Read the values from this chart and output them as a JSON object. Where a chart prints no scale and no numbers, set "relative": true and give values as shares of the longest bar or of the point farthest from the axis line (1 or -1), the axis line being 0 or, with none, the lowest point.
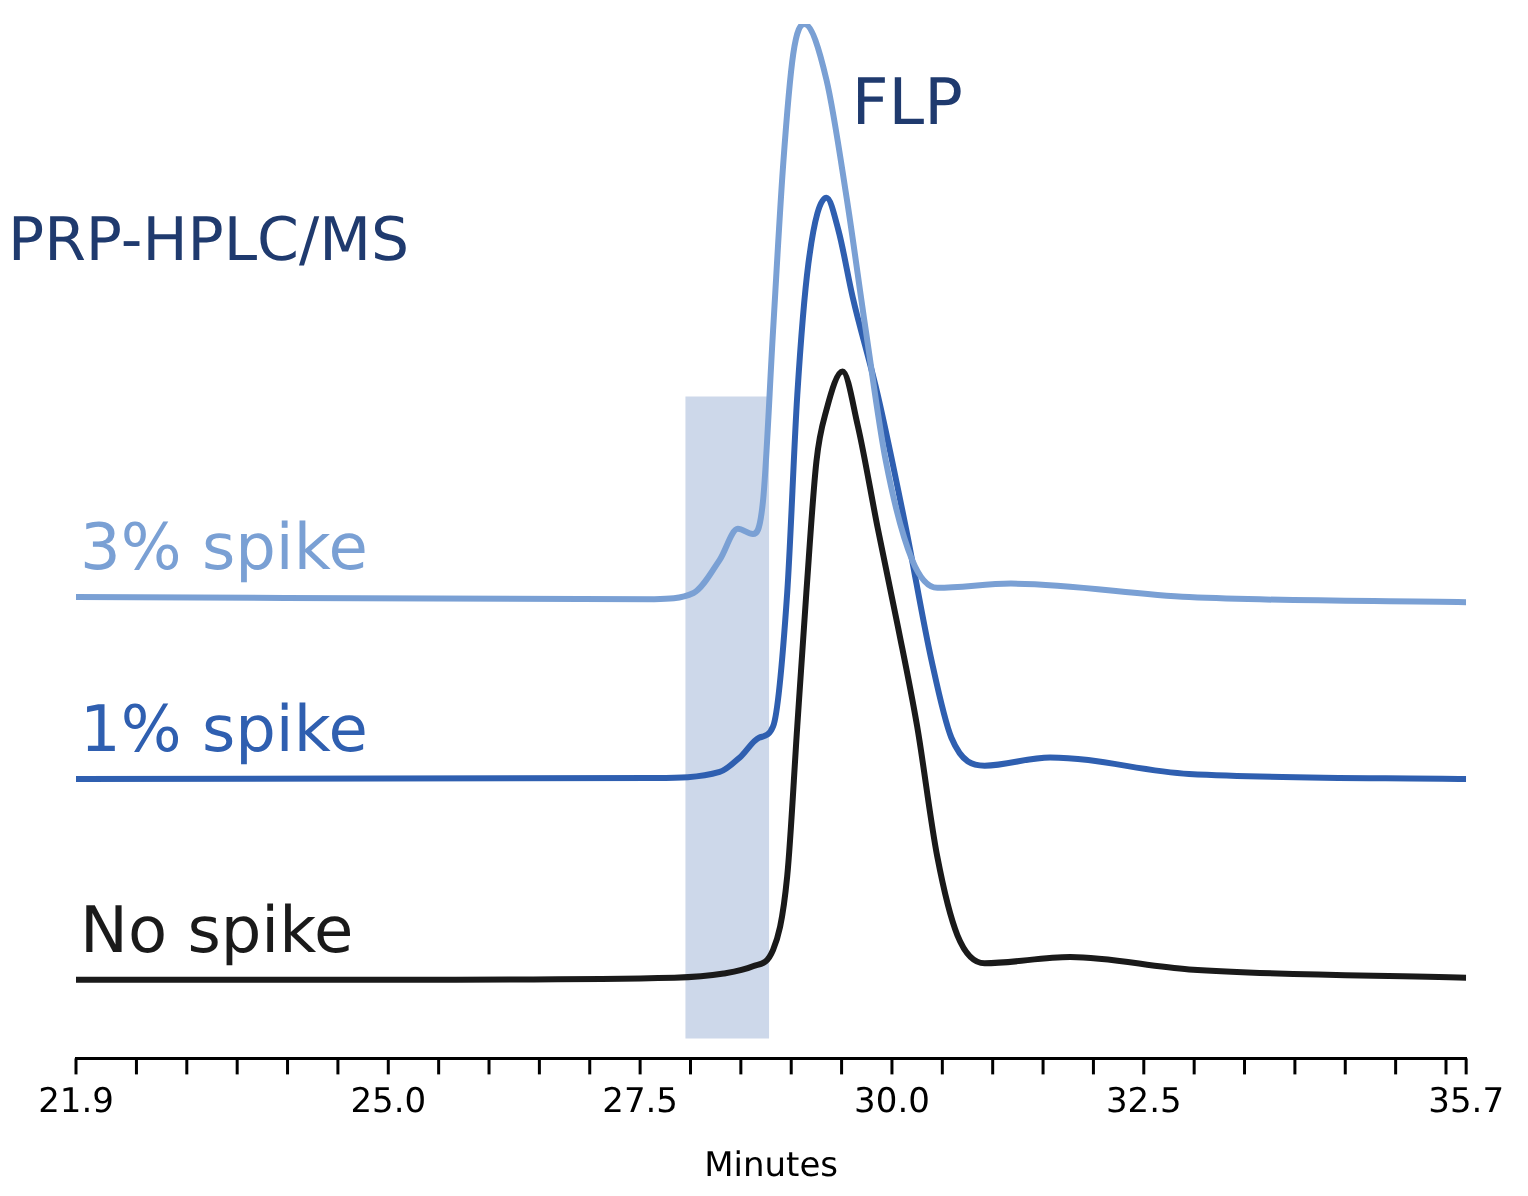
{
  "chart_data": {
    "type": "line",
    "title": "PRP-HPLC/MS",
    "xlabel": "Minutes",
    "annotations": [
      "FLP"
    ],
    "relative": true,
    "legend": false,
    "grid": false,
    "marker": "none",
    "line_style": "solid",
    "tick_labels": "x",
    "xlim": [
      21.9,
      35.7
    ],
    "xticks": [
      21.9,
      {
        "value": 22.5,
        "label": null
      },
      {
        "value": 23,
        "label": null
      },
      {
        "value": 23.5,
        "label": null
      },
      {
        "value": 24,
        "label": null
      },
      {
        "value": 24.5,
        "label": null
      },
      {
        "value": 25,
        "label": "25.0"
      },
      {
        "value": 25.5,
        "label": null
      },
      {
        "value": 26,
        "label": null
      },
      {
        "value": 26.5,
        "label": null
      },
      {
        "value": 27,
        "label": null
      },
      27.5,
      {
        "value": 28,
        "label": null
      },
      {
        "value": 28.5,
        "label": null
      },
      {
        "value": 29,
        "label": null
      },
      {
        "value": 29.5,
        "label": null
      },
      {
        "value": 30,
        "label": "30.0"
      },
      {
        "value": 30.5,
        "label": null
      },
      {
        "value": 31,
        "label": null
      },
      {
        "value": 31.5,
        "label": null
      },
      {
        "value": 32,
        "label": null
      },
      32.5,
      {
        "value": 33,
        "label": null
      },
      {
        "value": 33.5,
        "label": null
      },
      {
        "value": 34,
        "label": null
      },
      {
        "value": 34.5,
        "label": null
      },
      {
        "value": 35,
        "label": null
      },
      {
        "value": 35.5,
        "label": null
      },
      35.7
    ],
    "bands": [
      {
        "axis": "x",
        "from": 27.95,
        "to": 28.78,
        "color": "#cdd8ea"
      }
    ],
    "series": [
      {
        "name": "3% spike",
        "color": "#7aa0d4",
        "x": [
          21.9,
          27.64,
          28.03,
          28.29,
          28.47,
          28.62,
          28.72,
          28.82,
          28.92,
          29.02,
          29.13,
          29.35,
          29.55,
          29.74,
          29.94,
          30.2,
          30.45,
          31.18,
          32.95,
          35.7
        ],
        "values": [
          0.446,
          0.444,
          0.45,
          0.482,
          0.512,
          0.507,
          0.539,
          0.704,
          0.864,
          0.971,
          1.0,
          0.946,
          0.832,
          0.704,
          0.577,
          0.482,
          0.455,
          0.459,
          0.446,
          0.441
        ]
      },
      {
        "name": "1% spike",
        "color": "#2f5fb0",
        "x": [
          21.9,
          27.64,
          28.29,
          28.49,
          28.68,
          28.82,
          28.96,
          29.06,
          29.17,
          29.35,
          29.47,
          29.61,
          29.86,
          30.14,
          30.39,
          30.59,
          30.92,
          31.57,
          32.95,
          35.7
        ],
        "values": [
          0.27,
          0.271,
          0.277,
          0.291,
          0.31,
          0.321,
          0.45,
          0.641,
          0.768,
          0.832,
          0.8,
          0.736,
          0.641,
          0.512,
          0.386,
          0.31,
          0.283,
          0.291,
          0.275,
          0.27
        ]
      },
      {
        "name": "No spike",
        "color": "#1a1a1a",
        "x": [
          21.9,
          25.08,
          27.84,
          28.33,
          28.62,
          28.82,
          28.96,
          29.06,
          29.15,
          29.25,
          29.35,
          29.51,
          29.66,
          29.86,
          30.06,
          30.25,
          30.45,
          30.65,
          30.92,
          31.77,
          32.95,
          35.7
        ],
        "values": [
          0.076,
          0.076,
          0.078,
          0.082,
          0.089,
          0.105,
          0.176,
          0.321,
          0.45,
          0.577,
          0.627,
          0.664,
          0.612,
          0.512,
          0.417,
          0.321,
          0.195,
          0.119,
          0.092,
          0.098,
          0.086,
          0.078
        ]
      }
    ]
  }
}
